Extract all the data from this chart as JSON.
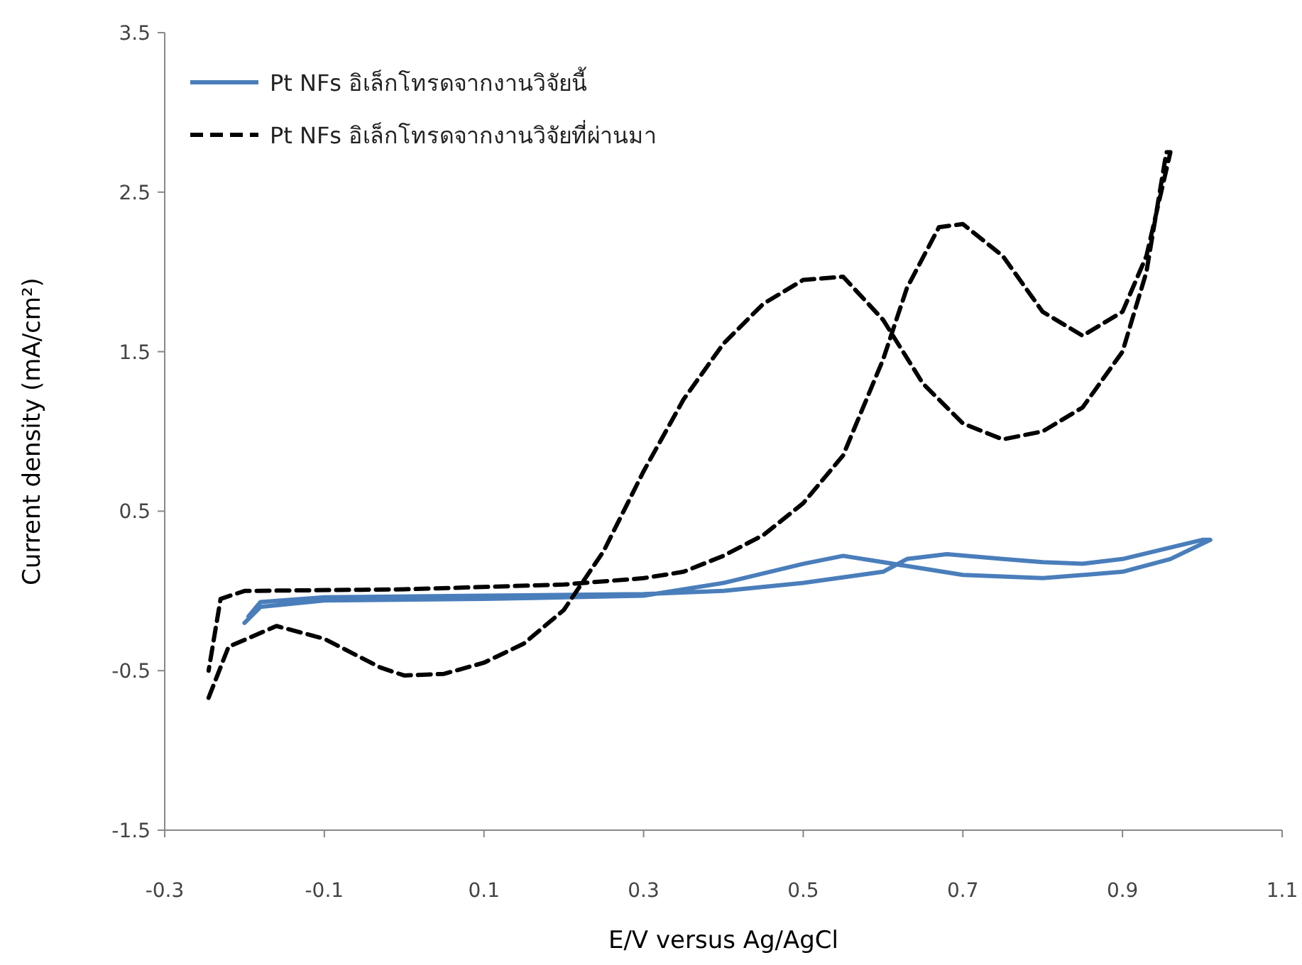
{
  "chart_data": {
    "type": "line",
    "xlabel": "E/V versus Ag/AgCl",
    "ylabel": "Current density (mA/cm²)",
    "xlim": [
      -0.3,
      1.1
    ],
    "ylim": [
      -1.5,
      3.5
    ],
    "xticks": [
      -0.3,
      -0.1,
      0.1,
      0.3,
      0.5,
      0.7,
      0.9,
      1.1
    ],
    "yticks": [
      -1.5,
      -0.5,
      0.5,
      1.5,
      2.5,
      3.5
    ],
    "legend": "top left",
    "series": [
      {
        "name": "Pt NFs อิเล็กโทรดจากงานวิจัยนี้",
        "color": "#4a7ebb",
        "line_style": "solid",
        "x": [
          -0.2,
          -0.18,
          -0.1,
          0.1,
          0.3,
          0.4,
          0.5,
          0.55,
          0.6,
          0.65,
          0.7,
          0.8,
          0.9,
          0.96,
          1.01,
          1.0,
          0.9,
          0.85,
          0.8,
          0.75,
          0.68,
          0.63,
          0.6,
          0.5,
          0.4,
          0.3,
          0.1,
          -0.1,
          -0.18,
          -0.195
        ],
        "values": [
          -0.2,
          -0.1,
          -0.06,
          -0.05,
          -0.03,
          0.05,
          0.17,
          0.22,
          0.18,
          0.14,
          0.1,
          0.08,
          0.12,
          0.2,
          0.32,
          0.32,
          0.2,
          0.17,
          0.18,
          0.2,
          0.23,
          0.2,
          0.12,
          0.05,
          0.0,
          -0.02,
          -0.03,
          -0.04,
          -0.07,
          -0.16
        ]
      },
      {
        "name": "Pt NFs อิเล็กโทรดจากงานวิจัยที่ผ่านมา",
        "color": "#000000",
        "line_style": "dashed",
        "x": [
          -0.245,
          -0.22,
          -0.16,
          -0.1,
          -0.03,
          0.0,
          0.05,
          0.1,
          0.15,
          0.2,
          0.25,
          0.3,
          0.35,
          0.4,
          0.45,
          0.5,
          0.55,
          0.6,
          0.65,
          0.7,
          0.75,
          0.8,
          0.85,
          0.9,
          0.93,
          0.955,
          0.96,
          0.93,
          0.9,
          0.85,
          0.8,
          0.75,
          0.7,
          0.67,
          0.63,
          0.6,
          0.55,
          0.5,
          0.45,
          0.4,
          0.35,
          0.3,
          0.2,
          0.0,
          -0.2,
          -0.23,
          -0.245
        ],
        "values": [
          -0.67,
          -0.35,
          -0.22,
          -0.3,
          -0.48,
          -0.53,
          -0.52,
          -0.45,
          -0.33,
          -0.12,
          0.25,
          0.75,
          1.2,
          1.55,
          1.8,
          1.95,
          1.97,
          1.7,
          1.3,
          1.05,
          0.95,
          1.0,
          1.15,
          1.5,
          2.0,
          2.75,
          2.75,
          2.1,
          1.75,
          1.6,
          1.75,
          2.1,
          2.3,
          2.28,
          1.9,
          1.45,
          0.85,
          0.55,
          0.35,
          0.22,
          0.12,
          0.08,
          0.04,
          0.01,
          0.0,
          -0.05,
          -0.5
        ]
      }
    ]
  }
}
